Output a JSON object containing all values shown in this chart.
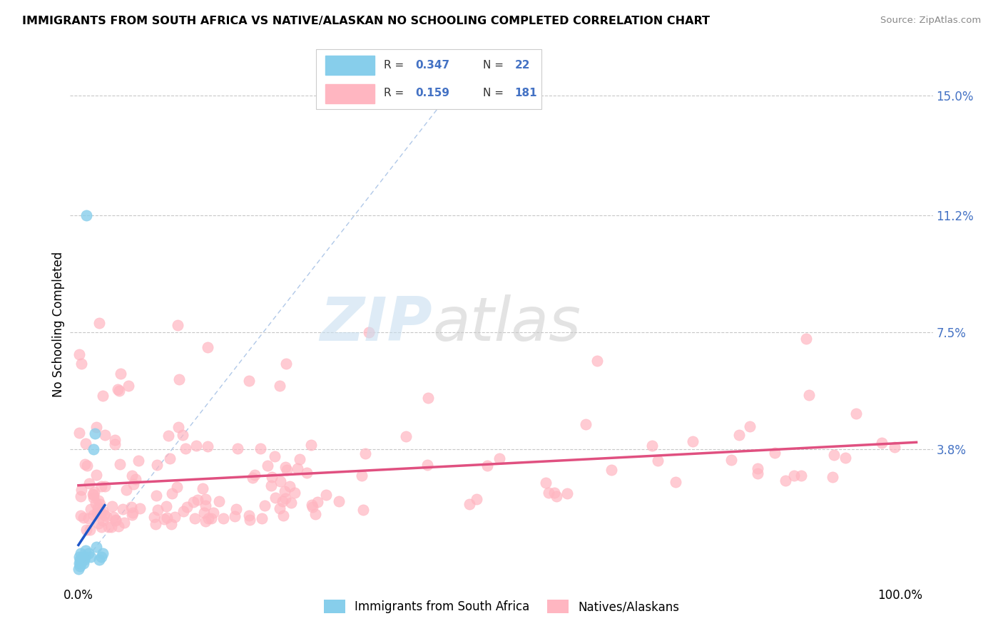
{
  "title": "IMMIGRANTS FROM SOUTH AFRICA VS NATIVE/ALASKAN NO SCHOOLING COMPLETED CORRELATION CHART",
  "source": "Source: ZipAtlas.com",
  "ylabel": "No Schooling Completed",
  "ytick_values": [
    0.038,
    0.075,
    0.112,
    0.15
  ],
  "ytick_labels": [
    "3.8%",
    "7.5%",
    "11.2%",
    "15.0%"
  ],
  "xtick_positions": [
    0.0,
    1.0
  ],
  "xtick_labels": [
    "0.0%",
    "100.0%"
  ],
  "color_blue_dot": "#87CEEB",
  "color_pink_dot": "#FFB6C1",
  "color_blue_line": "#1E56C8",
  "color_pink_line": "#E05080",
  "color_diag": "#B0C8E8",
  "color_grid": "#C8C8C8",
  "watermark_zip_color": "#C8DFF0",
  "watermark_atlas_color": "#C8C8C8",
  "background": "#FFFFFF",
  "legend_r1": "0.347",
  "legend_n1": "22",
  "legend_r2": "0.159",
  "legend_n2": "181"
}
